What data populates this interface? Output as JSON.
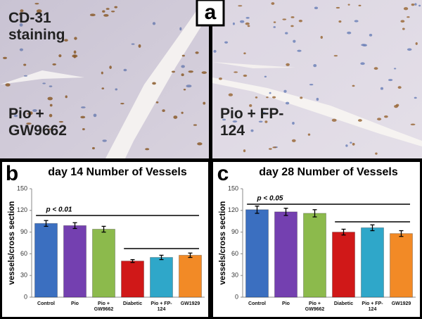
{
  "panel_a": {
    "label": "a",
    "left_texts": [
      "CD-31 staining",
      "Pio + GW9662"
    ],
    "right_text": "Pio + FP-124"
  },
  "chart_data": [
    {
      "type": "bar",
      "panel": "b",
      "title": "day 14 Number of Vessels",
      "y_label": "vessels/cross section",
      "categories": [
        "Control",
        "Pio",
        "Pio + GW9662",
        "Diabetic",
        "Pio + FP-124",
        "GW1929"
      ],
      "values": [
        102,
        99,
        94,
        50,
        55,
        58
      ],
      "errors": [
        4,
        4,
        4,
        2,
        3,
        3
      ],
      "colors": [
        "#3b6fc0",
        "#7440b0",
        "#8cba4c",
        "#d01818",
        "#2fa7c9",
        "#f28a26"
      ],
      "ylim": [
        0,
        150
      ],
      "yticks": [
        0,
        30,
        60,
        90,
        120,
        150
      ],
      "annotation": "p < 0.01"
    },
    {
      "type": "bar",
      "panel": "c",
      "title": "day 28 Number of Vessels",
      "y_label": "vessels/cross section",
      "categories": [
        "Control",
        "Pio",
        "Pio + GW9662",
        "Diabetic",
        "Pio + FP-124",
        "GW1929"
      ],
      "values": [
        121,
        118,
        116,
        90,
        96,
        88
      ],
      "errors": [
        5,
        5,
        5,
        4,
        4,
        4
      ],
      "colors": [
        "#3b6fc0",
        "#7440b0",
        "#8cba4c",
        "#d01818",
        "#2fa7c9",
        "#f28a26"
      ],
      "ylim": [
        0,
        150
      ],
      "yticks": [
        0,
        30,
        60,
        90,
        120,
        150
      ],
      "annotation": "p < 0.05"
    }
  ]
}
